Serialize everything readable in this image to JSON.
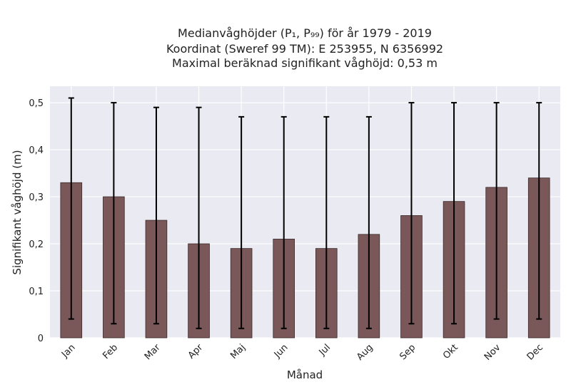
{
  "chart_data": {
    "type": "bar",
    "title_lines": [
      "Medianvåghöjder (P₁, P₉₉) för år 1979 - 2019",
      "Koordinat (Sweref 99 TM): E 253955, N 6356992",
      "Maximal beräknad signifikant våghöjd: 0,53 m"
    ],
    "xlabel": "Månad",
    "ylabel": "Signifikant våghöjd (m)",
    "categories": [
      "Jan",
      "Feb",
      "Mar",
      "Apr",
      "Maj",
      "Jun",
      "Jul",
      "Aug",
      "Sep",
      "Okt",
      "Nov",
      "Dec"
    ],
    "values": [
      0.33,
      0.3,
      0.25,
      0.2,
      0.19,
      0.21,
      0.19,
      0.22,
      0.26,
      0.29,
      0.32,
      0.34
    ],
    "p1": [
      0.04,
      0.03,
      0.03,
      0.02,
      0.02,
      0.02,
      0.02,
      0.02,
      0.03,
      0.03,
      0.04,
      0.04
    ],
    "p99": [
      0.51,
      0.5,
      0.49,
      0.49,
      0.47,
      0.47,
      0.47,
      0.47,
      0.5,
      0.5,
      0.5,
      0.5
    ],
    "ylim": [
      0,
      0.535
    ],
    "yticks": [
      0,
      0.1,
      0.2,
      0.3,
      0.4,
      0.5
    ],
    "ytick_labels": [
      "0",
      "0,1",
      "0,2",
      "0,3",
      "0,4",
      "0,5"
    ],
    "grid": true,
    "colors": {
      "bar": "#7a5758",
      "bar_edge": "#3a2a2a",
      "error_bar": "#000000",
      "plot_bg": "#eaeaf2",
      "grid": "#ffffff"
    }
  }
}
